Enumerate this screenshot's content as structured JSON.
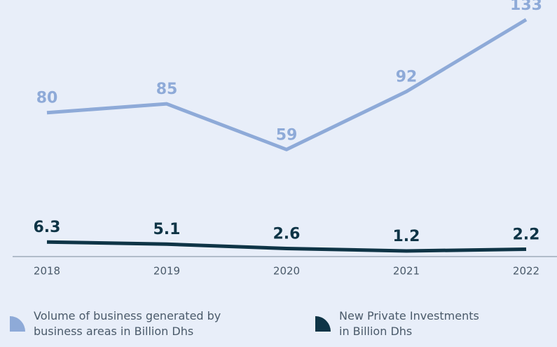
{
  "chart_data": {
    "type": "line",
    "x": [
      "2018",
      "2019",
      "2020",
      "2021",
      "2022"
    ],
    "series": [
      {
        "name": "Volume of business generated by\nbusiness areas in Billion Dhs",
        "color": "#8eaad8",
        "values": [
          80,
          85,
          59,
          92,
          133
        ]
      },
      {
        "name": "New Private Investments\nin Billion Dhs",
        "color": "#0e3446",
        "values": [
          6.3,
          5.1,
          2.6,
          1.2,
          2.2
        ]
      }
    ]
  }
}
